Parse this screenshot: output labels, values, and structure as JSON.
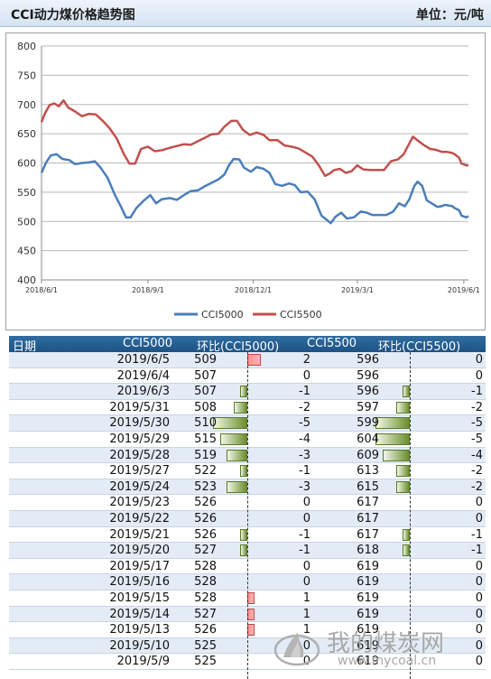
{
  "header": {
    "title": "CCI动力煤价格趋势图",
    "unit": "单位：元/吨"
  },
  "chart_data": {
    "type": "line",
    "ylim": [
      400,
      800
    ],
    "yticks": [
      400,
      450,
      500,
      550,
      600,
      650,
      700,
      750,
      800
    ],
    "xticks": [
      "2018/6/1",
      "2018/9/1",
      "2018/12/1",
      "2019/3/1",
      "2019/6/1"
    ],
    "x_range": [
      "2018/6/1",
      "2019/6/5"
    ],
    "grid": true,
    "legend_position": "bottom",
    "series": [
      {
        "name": "CCI5000",
        "color": "#4a7ebb",
        "points": [
          [
            "2018/6/1",
            583
          ],
          [
            "2018/6/5",
            601
          ],
          [
            "2018/6/9",
            613
          ],
          [
            "2018/6/14",
            615
          ],
          [
            "2018/6/19",
            607
          ],
          [
            "2018/6/25",
            605
          ],
          [
            "2018/6/30",
            598
          ],
          [
            "2018/7/6",
            600
          ],
          [
            "2018/7/12",
            601
          ],
          [
            "2018/7/17",
            603
          ],
          [
            "2018/7/22",
            592
          ],
          [
            "2018/7/28",
            575
          ],
          [
            "2018/8/3",
            547
          ],
          [
            "2018/8/9",
            524
          ],
          [
            "2018/8/13",
            507
          ],
          [
            "2018/8/17",
            507
          ],
          [
            "2018/8/22",
            523
          ],
          [
            "2018/8/28",
            535
          ],
          [
            "2018/9/3",
            545
          ],
          [
            "2018/9/8",
            531
          ],
          [
            "2018/9/13",
            538
          ],
          [
            "2018/9/20",
            540
          ],
          [
            "2018/9/26",
            537
          ],
          [
            "2018/10/2",
            545
          ],
          [
            "2018/10/8",
            552
          ],
          [
            "2018/10/14",
            553
          ],
          [
            "2018/10/20",
            560
          ],
          [
            "2018/10/26",
            566
          ],
          [
            "2018/11/1",
            572
          ],
          [
            "2018/11/6",
            580
          ],
          [
            "2018/11/10",
            596
          ],
          [
            "2018/11/14",
            607
          ],
          [
            "2018/11/19",
            606
          ],
          [
            "2018/11/23",
            592
          ],
          [
            "2018/11/29",
            585
          ],
          [
            "2018/12/4",
            593
          ],
          [
            "2018/12/10",
            590
          ],
          [
            "2018/12/15",
            583
          ],
          [
            "2018/12/20",
            564
          ],
          [
            "2018/12/26",
            561
          ],
          [
            "2019/1/1",
            565
          ],
          [
            "2019/1/6",
            562
          ],
          [
            "2019/1/11",
            550
          ],
          [
            "2019/1/17",
            551
          ],
          [
            "2019/1/23",
            538
          ],
          [
            "2019/1/29",
            510
          ],
          [
            "2019/2/3",
            502
          ],
          [
            "2019/2/6",
            497
          ],
          [
            "2019/2/10",
            508
          ],
          [
            "2019/2/15",
            515
          ],
          [
            "2019/2/20",
            505
          ],
          [
            "2019/2/26",
            507
          ],
          [
            "2019/3/4",
            517
          ],
          [
            "2019/3/9",
            515
          ],
          [
            "2019/3/14",
            511
          ],
          [
            "2019/3/20",
            511
          ],
          [
            "2019/3/26",
            511
          ],
          [
            "2019/4/1",
            517
          ],
          [
            "2019/4/6",
            531
          ],
          [
            "2019/4/11",
            526
          ],
          [
            "2019/4/15",
            538
          ],
          [
            "2019/4/19",
            560
          ],
          [
            "2019/4/22",
            568
          ],
          [
            "2019/4/26",
            561
          ],
          [
            "2019/4/30",
            536
          ],
          [
            "2019/5/5",
            530
          ],
          [
            "2019/5/9",
            525
          ],
          [
            "2019/5/13",
            526
          ],
          [
            "2019/5/15",
            528
          ],
          [
            "2019/5/17",
            528
          ],
          [
            "2019/5/20",
            527
          ],
          [
            "2019/5/22",
            526
          ],
          [
            "2019/5/24",
            523
          ],
          [
            "2019/5/28",
            519
          ],
          [
            "2019/5/30",
            510
          ],
          [
            "2019/6/3",
            507
          ],
          [
            "2019/6/5",
            509
          ]
        ]
      },
      {
        "name": "CCI5500",
        "color": "#c0504d",
        "points": [
          [
            "2018/6/1",
            670
          ],
          [
            "2018/6/4",
            685
          ],
          [
            "2018/6/8",
            699
          ],
          [
            "2018/6/12",
            702
          ],
          [
            "2018/6/16",
            697
          ],
          [
            "2018/6/20",
            707
          ],
          [
            "2018/6/24",
            695
          ],
          [
            "2018/6/30",
            688
          ],
          [
            "2018/7/6",
            680
          ],
          [
            "2018/7/12",
            684
          ],
          [
            "2018/7/18",
            683
          ],
          [
            "2018/7/24",
            672
          ],
          [
            "2018/7/30",
            659
          ],
          [
            "2018/8/5",
            642
          ],
          [
            "2018/8/11",
            616
          ],
          [
            "2018/8/16",
            599
          ],
          [
            "2018/8/21",
            599
          ],
          [
            "2018/8/26",
            624
          ],
          [
            "2018/9/1",
            628
          ],
          [
            "2018/9/7",
            620
          ],
          [
            "2018/9/13",
            622
          ],
          [
            "2018/9/20",
            626
          ],
          [
            "2018/9/26",
            629
          ],
          [
            "2018/10/2",
            632
          ],
          [
            "2018/10/8",
            631
          ],
          [
            "2018/10/14",
            637
          ],
          [
            "2018/10/20",
            643
          ],
          [
            "2018/10/26",
            649
          ],
          [
            "2018/11/1",
            650
          ],
          [
            "2018/11/6",
            662
          ],
          [
            "2018/11/12",
            672
          ],
          [
            "2018/11/17",
            672
          ],
          [
            "2018/11/22",
            657
          ],
          [
            "2018/11/28",
            648
          ],
          [
            "2018/12/4",
            652
          ],
          [
            "2018/12/10",
            648
          ],
          [
            "2018/12/15",
            639
          ],
          [
            "2018/12/22",
            639
          ],
          [
            "2018/12/28",
            630
          ],
          [
            "2019/1/3",
            628
          ],
          [
            "2019/1/9",
            625
          ],
          [
            "2019/1/15",
            618
          ],
          [
            "2019/1/21",
            611
          ],
          [
            "2019/1/27",
            595
          ],
          [
            "2019/2/1",
            578
          ],
          [
            "2019/2/5",
            582
          ],
          [
            "2019/2/9",
            588
          ],
          [
            "2019/2/14",
            590
          ],
          [
            "2019/2/19",
            583
          ],
          [
            "2019/2/24",
            586
          ],
          [
            "2019/3/1",
            596
          ],
          [
            "2019/3/6",
            589
          ],
          [
            "2019/3/12",
            588
          ],
          [
            "2019/3/18",
            588
          ],
          [
            "2019/3/24",
            588
          ],
          [
            "2019/3/30",
            603
          ],
          [
            "2019/4/5",
            606
          ],
          [
            "2019/4/10",
            615
          ],
          [
            "2019/4/14",
            630
          ],
          [
            "2019/4/18",
            645
          ],
          [
            "2019/4/23",
            637
          ],
          [
            "2019/4/28",
            630
          ],
          [
            "2019/5/3",
            624
          ],
          [
            "2019/5/7",
            623
          ],
          [
            "2019/5/13",
            619
          ],
          [
            "2019/5/15",
            619
          ],
          [
            "2019/5/17",
            619
          ],
          [
            "2019/5/20",
            618
          ],
          [
            "2019/5/22",
            617
          ],
          [
            "2019/5/24",
            615
          ],
          [
            "2019/5/28",
            609
          ],
          [
            "2019/5/30",
            599
          ],
          [
            "2019/6/3",
            596
          ],
          [
            "2019/6/5",
            596
          ]
        ]
      }
    ]
  },
  "table": {
    "headers": [
      "日期",
      "CCI5000",
      "环比(CCI5000)",
      "CCI5500",
      "环比(CCI5500)"
    ],
    "rows": [
      {
        "date": "2019/6/5",
        "cci5000": "509",
        "chg5000": "2",
        "cci5500": "596",
        "chg5500": "0"
      },
      {
        "date": "2019/6/4",
        "cci5000": "507",
        "chg5000": "0",
        "cci5500": "596",
        "chg5500": "0"
      },
      {
        "date": "2019/6/3",
        "cci5000": "507",
        "chg5000": "-1",
        "cci5500": "596",
        "chg5500": "-1"
      },
      {
        "date": "2019/5/31",
        "cci5000": "508",
        "chg5000": "-2",
        "cci5500": "597",
        "chg5500": "-2"
      },
      {
        "date": "2019/5/30",
        "cci5000": "510",
        "chg5000": "-5",
        "cci5500": "599",
        "chg5500": "-5"
      },
      {
        "date": "2019/5/29",
        "cci5000": "515",
        "chg5000": "-4",
        "cci5500": "604",
        "chg5500": "-5"
      },
      {
        "date": "2019/5/28",
        "cci5000": "519",
        "chg5000": "-3",
        "cci5500": "609",
        "chg5500": "-4"
      },
      {
        "date": "2019/5/27",
        "cci5000": "522",
        "chg5000": "-1",
        "cci5500": "613",
        "chg5500": "-2"
      },
      {
        "date": "2019/5/24",
        "cci5000": "523",
        "chg5000": "-3",
        "cci5500": "615",
        "chg5500": "-2"
      },
      {
        "date": "2019/5/23",
        "cci5000": "526",
        "chg5000": "0",
        "cci5500": "617",
        "chg5500": "0"
      },
      {
        "date": "2019/5/22",
        "cci5000": "526",
        "chg5000": "0",
        "cci5500": "617",
        "chg5500": "0"
      },
      {
        "date": "2019/5/21",
        "cci5000": "526",
        "chg5000": "-1",
        "cci5500": "617",
        "chg5500": "-1"
      },
      {
        "date": "2019/5/20",
        "cci5000": "527",
        "chg5000": "-1",
        "cci5500": "618",
        "chg5500": "-1"
      },
      {
        "date": "2019/5/17",
        "cci5000": "528",
        "chg5000": "0",
        "cci5500": "619",
        "chg5500": "0"
      },
      {
        "date": "2019/5/16",
        "cci5000": "528",
        "chg5000": "0",
        "cci5500": "619",
        "chg5500": "0"
      },
      {
        "date": "2019/5/15",
        "cci5000": "528",
        "chg5000": "1",
        "cci5500": "619",
        "chg5500": "0"
      },
      {
        "date": "2019/5/14",
        "cci5000": "527",
        "chg5000": "1",
        "cci5500": "619",
        "chg5500": "0"
      },
      {
        "date": "2019/5/13",
        "cci5000": "526",
        "chg5000": "1",
        "cci5500": "619",
        "chg5500": "0"
      },
      {
        "date": "2019/5/10",
        "cci5000": "525",
        "chg5000": "0",
        "cci5500": "619",
        "chg5500": "0"
      },
      {
        "date": "2019/5/9",
        "cci5000": "525",
        "chg5000": "0",
        "cci5500": "619",
        "chg5500": "0"
      }
    ]
  },
  "watermark": {
    "name": "我的煤炭网",
    "url": "www.mycoal.cn"
  }
}
